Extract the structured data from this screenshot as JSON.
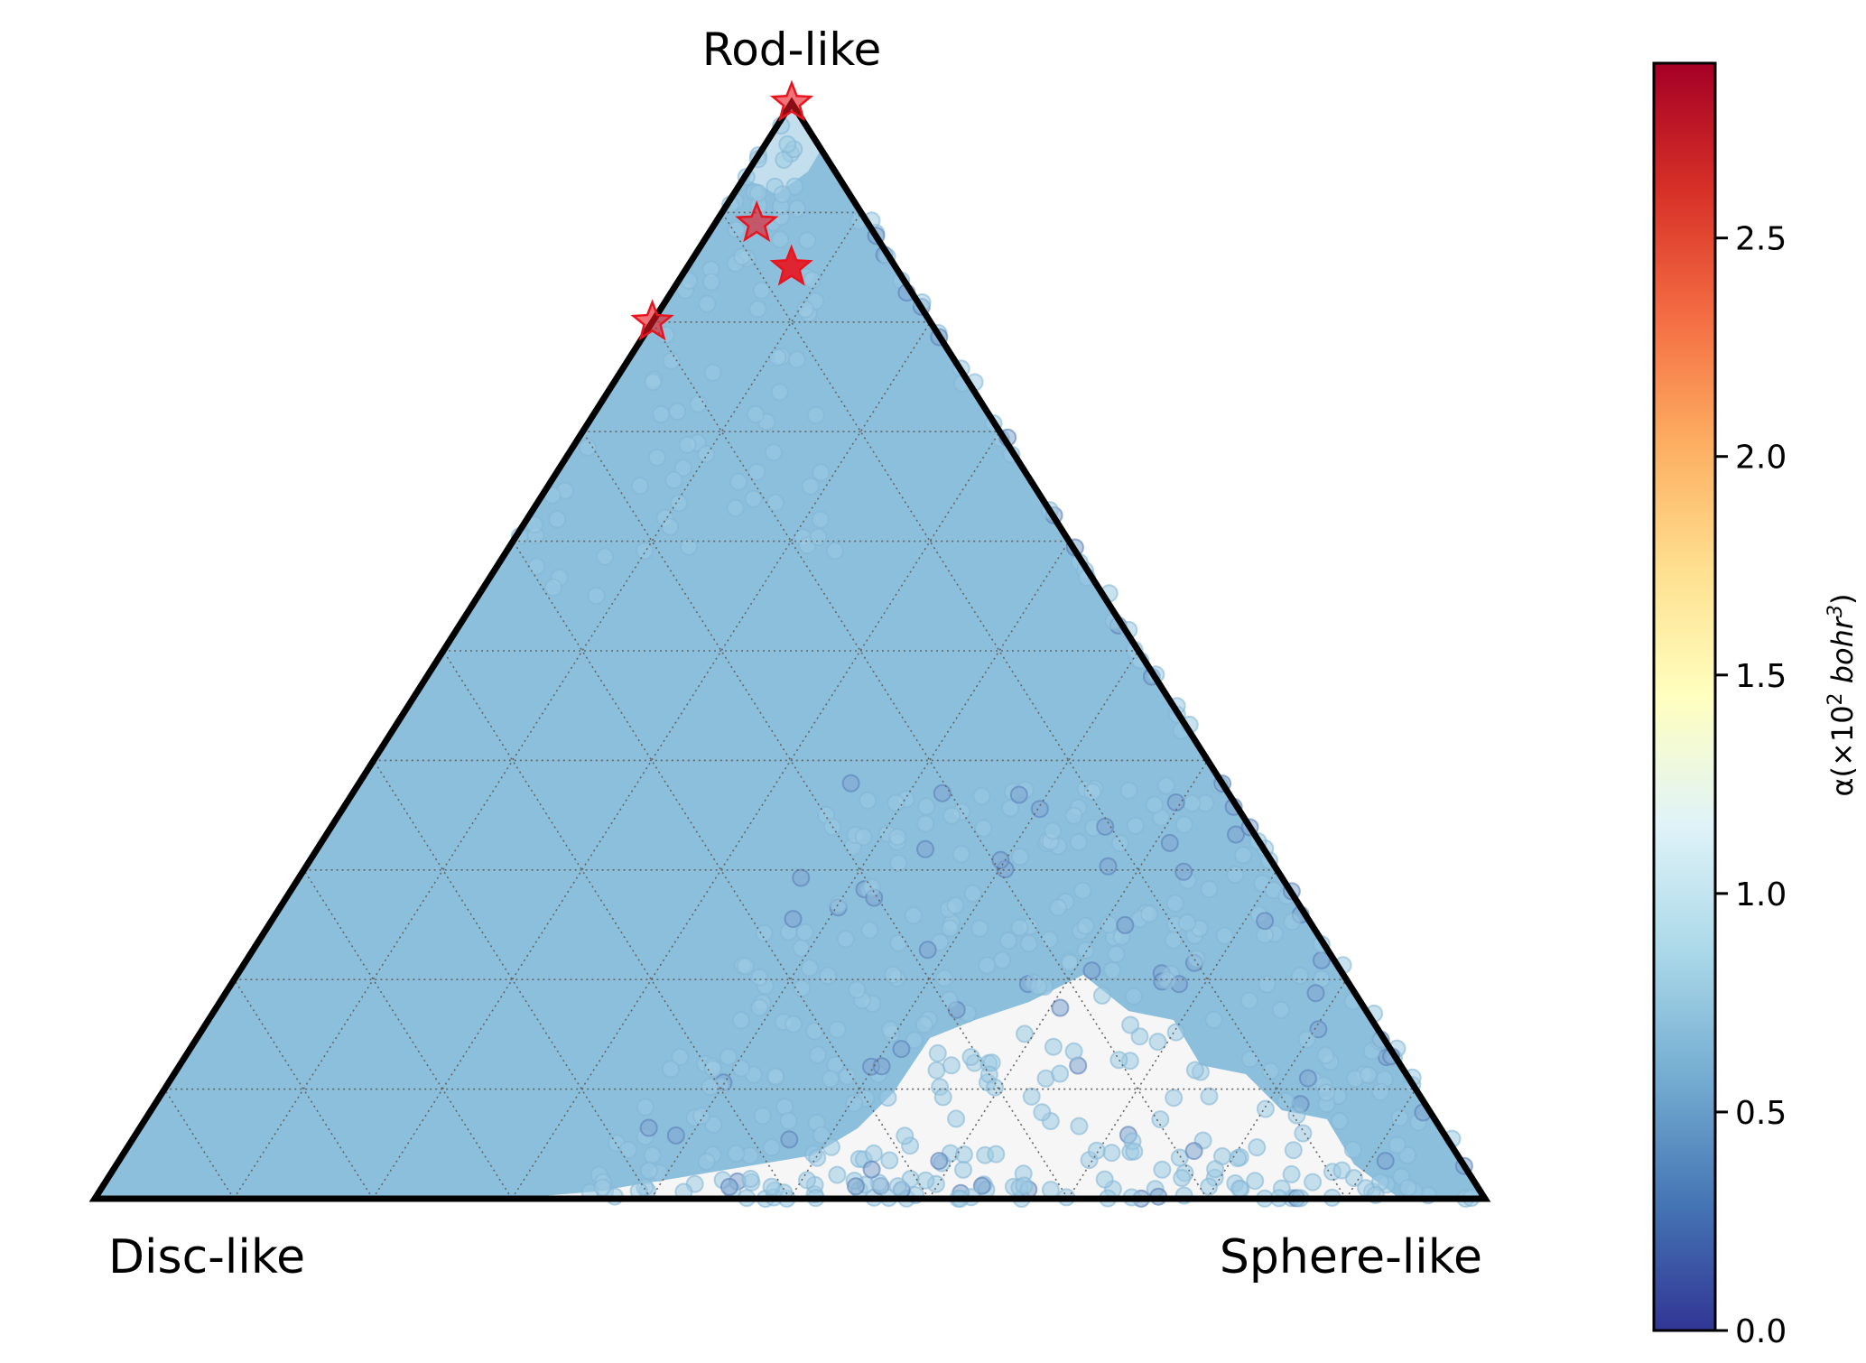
{
  "chart_data": {
    "type": "scatter",
    "subtype": "ternary",
    "vertex_labels": {
      "top": "Rod-like",
      "left": "Disc-like",
      "right": "Sphere-like"
    },
    "grid": true,
    "colorbar": {
      "label_prefix": "α(×10",
      "label_exp": "2",
      "label_unit": " bohr",
      "label_unit_exp": "3",
      "label_suffix": ")",
      "range": [
        0.0,
        2.9
      ],
      "ticks": [
        "0.0",
        "0.5",
        "1.0",
        "1.5",
        "2.0",
        "2.5"
      ],
      "tick_values": [
        0.0,
        0.5,
        1.0,
        1.5,
        2.0,
        2.5
      ],
      "colormap": "RdYlBu_r"
    },
    "bulk_color": "#8bbfdc",
    "highlight_color": "#e8141e",
    "highlight_points": [
      {
        "rod": 1.0,
        "sphere": 0.0,
        "value": 2.9
      },
      {
        "rod": 0.89,
        "sphere": 0.03,
        "value": 2.9
      },
      {
        "rod": 0.85,
        "sphere": 0.075,
        "value": 2.9
      },
      {
        "rod": 0.8,
        "sphere": 0.0,
        "value": 2.9
      }
    ]
  }
}
